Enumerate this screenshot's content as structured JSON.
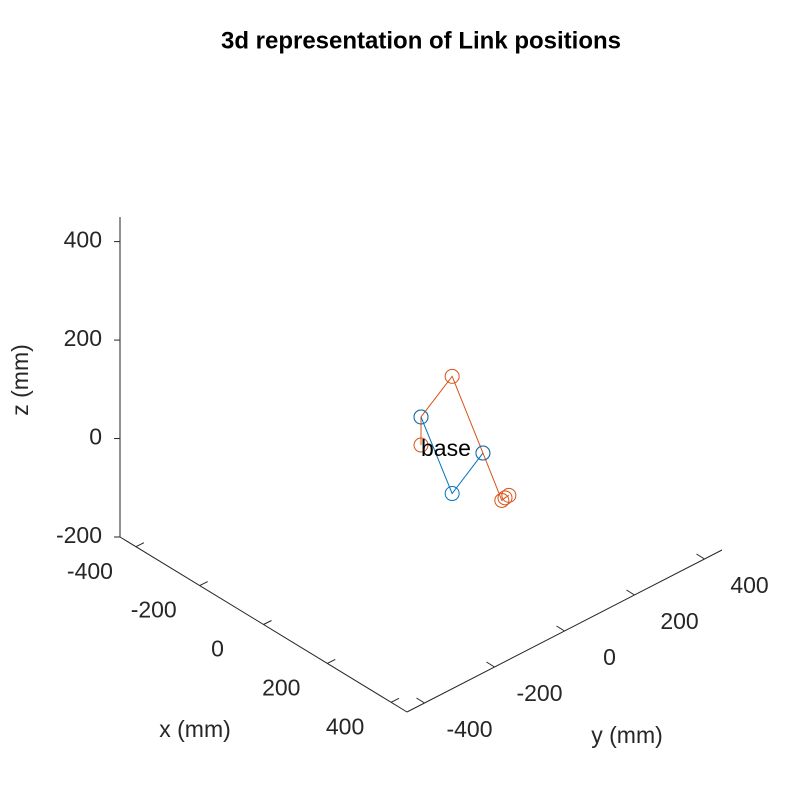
{
  "chart_data": {
    "type": "line3d",
    "title": "3d representation of Link positions",
    "xlabel": "x (mm)",
    "ylabel": "y (mm)",
    "zlabel": "z (mm)",
    "xlim": [
      -450,
      450
    ],
    "ylim": [
      -450,
      450
    ],
    "zlim": [
      -200,
      450
    ],
    "xticks": [
      -400,
      -200,
      0,
      200,
      400
    ],
    "yticks": [
      -400,
      -200,
      0,
      200,
      400
    ],
    "zticks": [
      -200,
      0,
      200,
      400
    ],
    "series": [
      {
        "color": "#D95319",
        "x": [
          0,
          0,
          0,
          0,
          0,
          0,
          0
        ],
        "y": [
          0,
          0,
          89,
          177,
          231,
          240,
          251
        ],
        "z": [
          0,
          57,
          107,
          -81,
          -197,
          -195,
          -194
        ]
      },
      {
        "color": "#0072BD",
        "x": [
          0,
          0,
          0
        ],
        "y": [
          0,
          89,
          177
        ],
        "z": [
          57,
          -131,
          -81
        ]
      }
    ],
    "annotations": [
      {
        "text": "base",
        "x": 0,
        "y": 0,
        "z": 0
      }
    ]
  }
}
